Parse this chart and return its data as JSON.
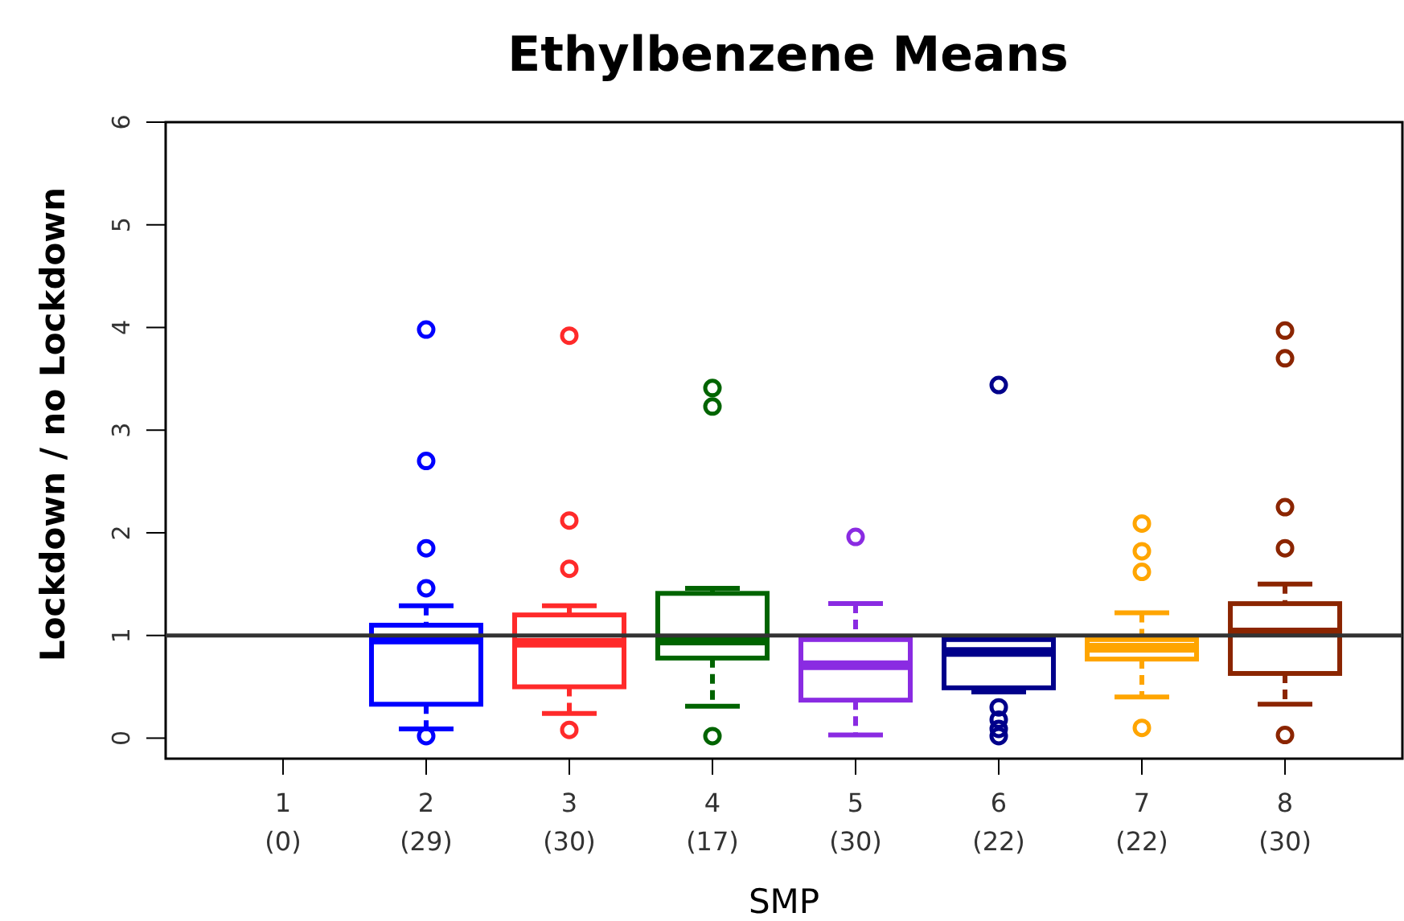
{
  "chart_data": {
    "type": "box",
    "title": "Ethylbenzene Means",
    "xlabel": "SMP",
    "ylabel": "Lockdown / no Lockdown",
    "categories": [
      "1\n(0)",
      "2\n(29)",
      "3\n(30)",
      "4\n(17)",
      "5\n(30)",
      "6\n(22)",
      "7\n(22)",
      "8\n(30)"
    ],
    "colors": [
      null,
      "#0000ff",
      "#ff2a2a",
      "#006400",
      "#8a2be2",
      "#00008b",
      "#ffa500",
      "#8b2500"
    ],
    "boxes": [
      null,
      {
        "low": 0.09,
        "q1": 0.33,
        "median": 0.96,
        "q3": 1.1,
        "high": 1.29,
        "outliers": [
          3.98,
          2.7,
          1.85,
          1.46,
          0.02
        ]
      },
      {
        "low": 0.24,
        "q1": 0.5,
        "median": 0.93,
        "q3": 1.2,
        "high": 1.29,
        "outliers": [
          3.92,
          2.12,
          1.65,
          0.08
        ]
      },
      {
        "low": 0.31,
        "q1": 0.78,
        "median": 0.95,
        "q3": 1.41,
        "high": 1.46,
        "outliers": [
          3.41,
          3.23,
          0.02
        ]
      },
      {
        "low": 0.03,
        "q1": 0.37,
        "median": 0.71,
        "q3": 0.96,
        "high": 1.31,
        "outliers": [
          1.96
        ]
      },
      {
        "low": 0.45,
        "q1": 0.49,
        "median": 0.84,
        "q3": 0.96,
        "high": 0.97,
        "outliers": [
          3.44,
          0.3,
          0.18,
          0.09,
          0.02
        ]
      },
      {
        "low": 0.4,
        "q1": 0.77,
        "median": 0.88,
        "q3": 0.96,
        "high": 1.22,
        "outliers": [
          2.09,
          1.82,
          1.62,
          0.1
        ]
      },
      {
        "low": 0.33,
        "q1": 0.63,
        "median": 1.03,
        "q3": 1.31,
        "high": 1.5,
        "outliers": [
          3.97,
          3.7,
          2.25,
          1.85,
          0.03
        ]
      }
    ],
    "ylim": [
      -0.2,
      6
    ],
    "yticks": [
      0,
      1,
      2,
      3,
      4,
      5,
      6
    ],
    "ref_lines": [
      {
        "axis": "y",
        "value": 1,
        "label": null,
        "color": "#333333"
      }
    ]
  }
}
